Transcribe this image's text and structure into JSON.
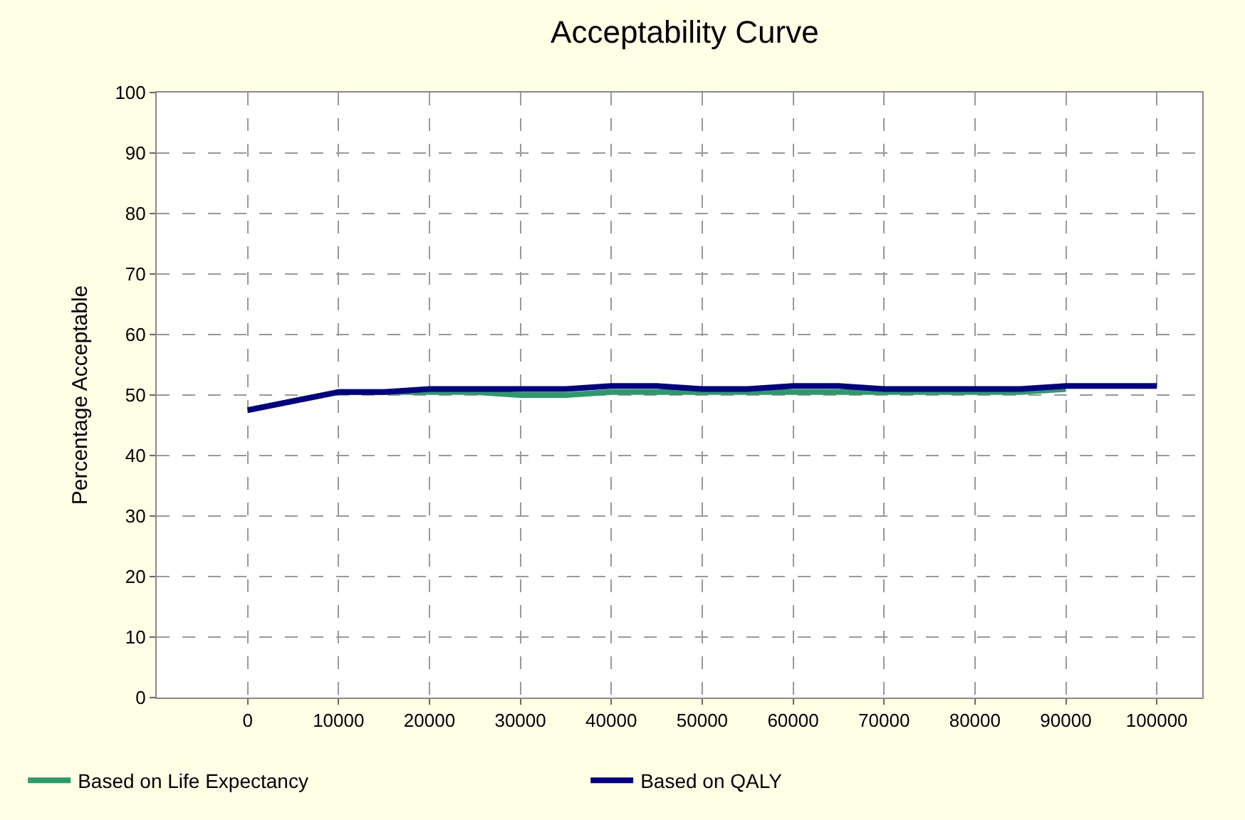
{
  "chart_data": {
    "type": "line",
    "title": "Acceptability Curve",
    "ylabel": "Percentage Acceptable",
    "x": [
      0,
      5000,
      10000,
      15000,
      20000,
      25000,
      30000,
      35000,
      40000,
      45000,
      50000,
      55000,
      60000,
      65000,
      70000,
      75000,
      80000,
      85000,
      90000,
      95000,
      100000
    ],
    "series": [
      {
        "name": "Based on Life Expectancy",
        "color": "#2e9a6a",
        "values": [
          null,
          null,
          50.5,
          50.5,
          50.5,
          50.5,
          50,
          50,
          50.5,
          50.5,
          50.5,
          50.5,
          50.5,
          50.5,
          50.5,
          50.5,
          50.5,
          50.5,
          51,
          null,
          null
        ]
      },
      {
        "name": "Based on QALY",
        "color": "#000080",
        "values": [
          47.5,
          49,
          50.5,
          50.5,
          51,
          51,
          51,
          51,
          51.5,
          51.5,
          51,
          51,
          51.5,
          51.5,
          51,
          51,
          51,
          51,
          51.5,
          51.5,
          51.5
        ]
      }
    ],
    "xlim": [
      -10000,
      105000
    ],
    "xticks": [
      0,
      10000,
      20000,
      30000,
      40000,
      50000,
      60000,
      70000,
      80000,
      90000,
      100000
    ],
    "ylim": [
      0,
      100
    ],
    "yticks": [
      0,
      10,
      20,
      30,
      40,
      50,
      60,
      70,
      80,
      90,
      100
    ],
    "grid": true,
    "legend": "bottom",
    "marker": "none",
    "line_style": "solid"
  }
}
